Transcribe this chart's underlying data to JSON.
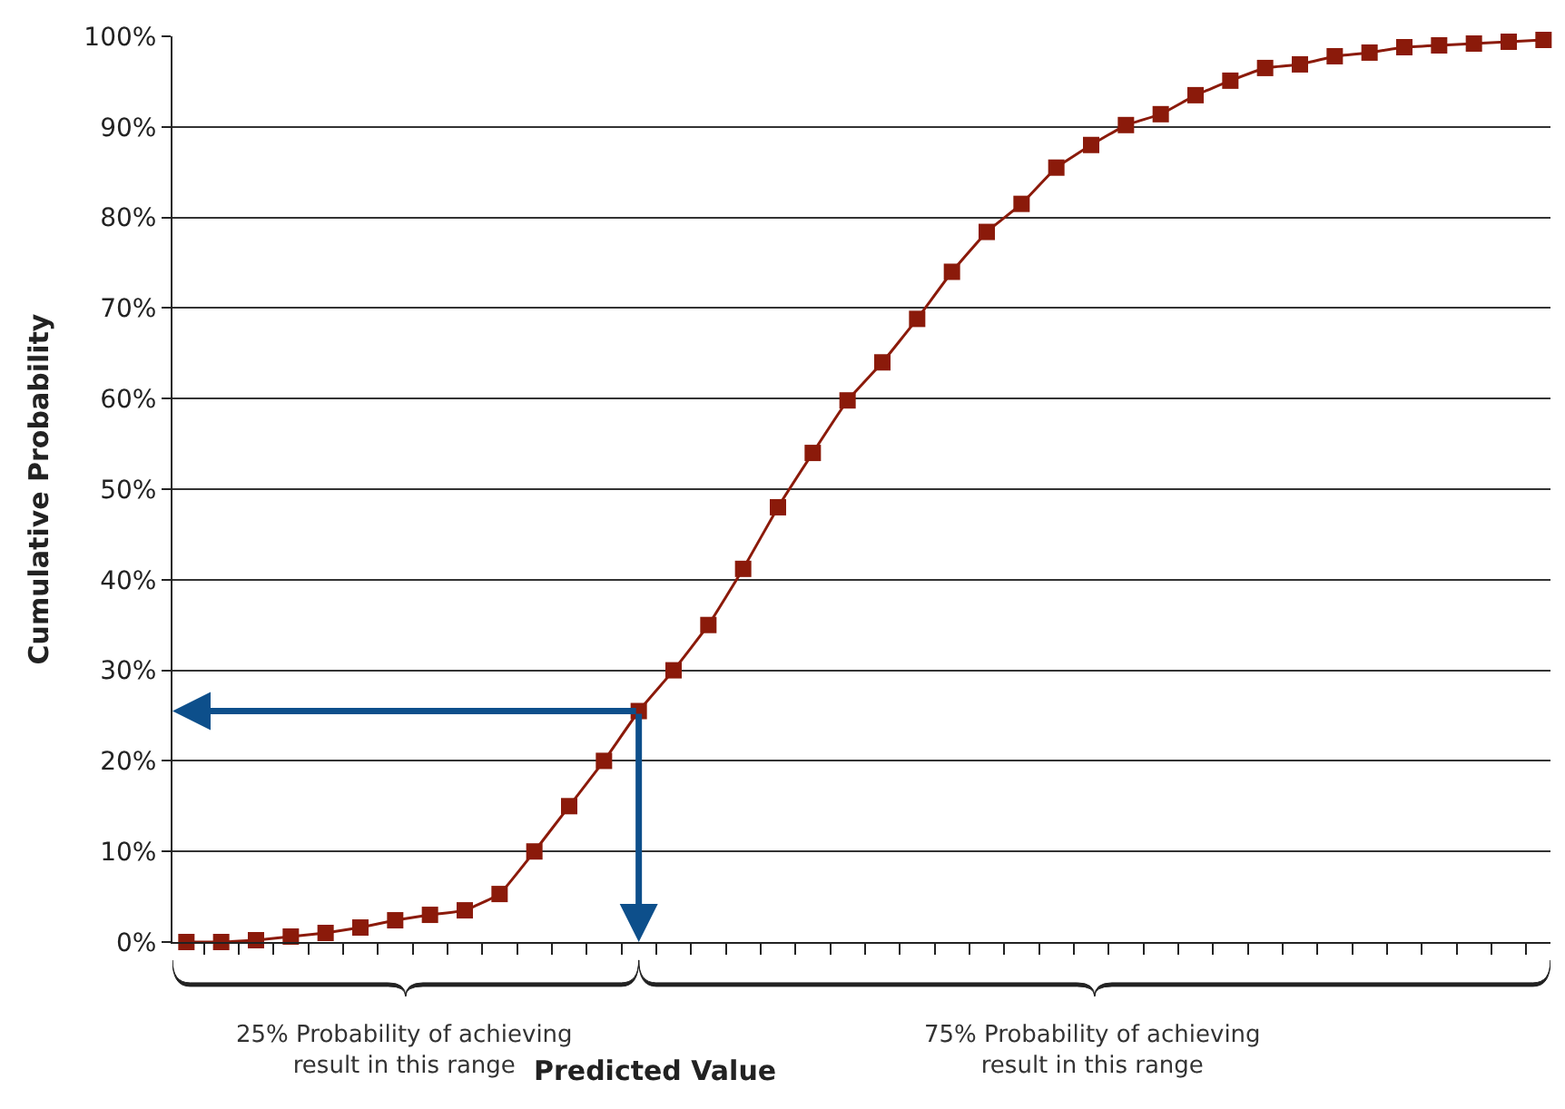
{
  "chart_data": {
    "type": "line",
    "xlabel": "Predicted Value",
    "ylabel": "Cumulative Probability",
    "categories": [
      null,
      null,
      null,
      null,
      null,
      null,
      null,
      null,
      null,
      null,
      null,
      null,
      null,
      null,
      null,
      null,
      null,
      null,
      null,
      null,
      null,
      null,
      null,
      null,
      null,
      null,
      null,
      null,
      null,
      null,
      null,
      null,
      null,
      null,
      null,
      null,
      null,
      null,
      null,
      null
    ],
    "series": [
      {
        "color": "#8b1a0a",
        "values": [
          0,
          0,
          0.2,
          0.6,
          1,
          1.6,
          2.4,
          3,
          3.5,
          5.3,
          10,
          15,
          20,
          25.5,
          30,
          35,
          41.2,
          48,
          54,
          59.8,
          64,
          68.8,
          74,
          78.4,
          81.5,
          85.5,
          88,
          90.2,
          91.4,
          93.5,
          95.1,
          96.5,
          96.9,
          97.8,
          98.2,
          98.8,
          99,
          99.2,
          99.4,
          99.6
        ]
      }
    ],
    "ylim": [
      0,
      100
    ],
    "yticks": [
      {
        "value": 0,
        "label": "0%"
      },
      {
        "value": 10,
        "label": "10%"
      },
      {
        "value": 20,
        "label": "20%"
      },
      {
        "value": 30,
        "label": "30%"
      },
      {
        "value": 40,
        "label": "40%"
      },
      {
        "value": 50,
        "label": "50%"
      },
      {
        "value": 60,
        "label": "60%"
      },
      {
        "value": 70,
        "label": "70%"
      },
      {
        "value": 80,
        "label": "80%"
      },
      {
        "value": 90,
        "label": "90%"
      },
      {
        "value": 100,
        "label": "100%"
      }
    ],
    "grid": "y",
    "marker": "square",
    "line_style": "solid",
    "legend": false,
    "tick_labels": "y",
    "annotations": [
      "25% Probability of achieving\nresult in this range",
      "75% Probability of achieving\nresult in this range"
    ]
  }
}
